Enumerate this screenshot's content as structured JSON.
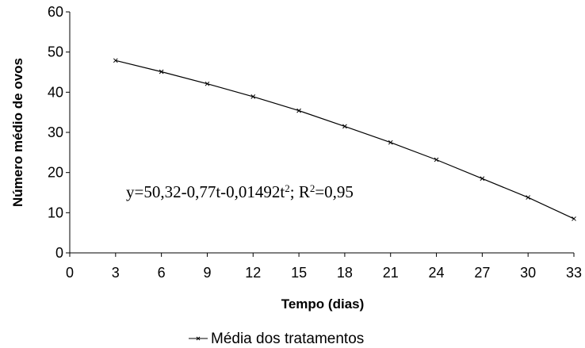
{
  "chart_data": {
    "type": "line",
    "xlabel": "Tempo (dias)",
    "ylabel": "Número médio de ovos",
    "xlim": [
      0,
      33
    ],
    "ylim": [
      0,
      60
    ],
    "xticks": [
      0,
      3,
      6,
      9,
      12,
      15,
      18,
      21,
      24,
      27,
      30,
      33
    ],
    "yticks": [
      0,
      10,
      20,
      30,
      40,
      50,
      60
    ],
    "grid": false,
    "legend_position": "bottom",
    "series": [
      {
        "name": "Média dos tratamentos",
        "color": "#000000",
        "marker": "x",
        "x": [
          3,
          6,
          9,
          12,
          15,
          18,
          21,
          24,
          27,
          30,
          33
        ],
        "y": [
          47.9,
          45.1,
          42.1,
          38.9,
          35.4,
          31.5,
          27.5,
          23.2,
          18.5,
          13.8,
          8.5
        ]
      }
    ],
    "annotation": {
      "eq_prefix": "y=50,32-0,77t-0,01492t",
      "eq_sup1": "2",
      "eq_middle": "; R",
      "eq_sup2": "2",
      "eq_suffix": "=0,95"
    }
  }
}
